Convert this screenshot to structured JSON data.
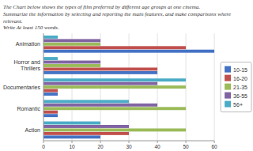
{
  "chart_data": {
    "type": "bar",
    "orientation": "horizontal",
    "title": "The Chart below shows the types of film preferred by different age groups at one cinema.\nSummarize the information by selecting and reporting the main features, and make comparisons where\nrelevant.\nWrite At least 150 words.",
    "categories": [
      "Action",
      "Romantic",
      "Documentaries",
      "Horror and\nThrillers",
      "Animation"
    ],
    "series": [
      {
        "name": "10-15",
        "color": "#4472c4",
        "values": [
          20,
          5,
          5,
          40,
          60
        ]
      },
      {
        "name": "16-20",
        "color": "#c0504d",
        "values": [
          30,
          5,
          5,
          40,
          50
        ]
      },
      {
        "name": "21-35",
        "color": "#9bbb59",
        "values": [
          50,
          50,
          50,
          20,
          20
        ]
      },
      {
        "name": "36-55",
        "color": "#8064a2",
        "values": [
          30,
          40,
          40,
          20,
          20
        ]
      },
      {
        "name": "56+",
        "color": "#4bacc6",
        "values": [
          20,
          30,
          50,
          5,
          5
        ]
      }
    ],
    "xlim": [
      0,
      60
    ],
    "xticks": [
      0,
      10,
      20,
      30,
      40,
      50,
      60
    ],
    "grid": true,
    "legend": "right"
  }
}
